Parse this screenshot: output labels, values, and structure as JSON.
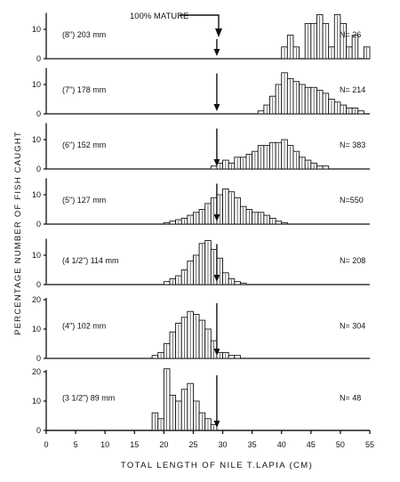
{
  "chart_data": {
    "type": "bar",
    "ylabel": "PERCENTAGE NUMBER OF FISH CAUGHT",
    "xlabel": "TOTAL LENGTH OF NILE T.LAPIA (CM)",
    "annotation": "100% MATURE",
    "mature_length": 29,
    "bin_width": 1,
    "xlim": [
      0,
      55
    ],
    "x_ticks": [
      "0",
      "5",
      "10",
      "15",
      "20",
      "25",
      "30",
      "35",
      "40",
      "45",
      "50",
      "55"
    ],
    "panels": [
      {
        "mesh_label": "(8\")  203 mm",
        "n_label": "N= 26",
        "ylim": [
          0,
          15
        ],
        "y_ticks": [
          "0",
          "10"
        ],
        "bin_starts": [
          40,
          41,
          42,
          43,
          44,
          45,
          46,
          47,
          48,
          49,
          50,
          51,
          52,
          53,
          54
        ],
        "values": [
          4,
          8,
          4,
          0,
          12,
          12,
          15,
          12,
          4,
          15,
          12,
          4,
          8,
          0,
          4
        ]
      },
      {
        "mesh_label": "(7\")  178 mm",
        "n_label": "N= 214",
        "ylim": [
          0,
          15
        ],
        "y_ticks": [
          "0",
          "10"
        ],
        "bin_starts": [
          36,
          37,
          38,
          39,
          40,
          41,
          42,
          43,
          44,
          45,
          46,
          47,
          48,
          49,
          50,
          51,
          52,
          53
        ],
        "values": [
          1,
          3,
          6,
          10,
          14,
          12,
          11,
          10,
          9,
          9,
          8,
          7,
          5,
          4,
          3,
          2,
          2,
          1
        ]
      },
      {
        "mesh_label": "(6\")  152 mm",
        "n_label": "N= 383",
        "ylim": [
          0,
          15
        ],
        "y_ticks": [
          "0",
          "10"
        ],
        "bin_starts": [
          28,
          29,
          30,
          31,
          32,
          33,
          34,
          35,
          36,
          37,
          38,
          39,
          40,
          41,
          42,
          43,
          44,
          45,
          46,
          47
        ],
        "values": [
          1,
          2,
          3,
          2,
          4,
          4,
          5,
          6,
          8,
          8,
          9,
          9,
          10,
          8,
          6,
          4,
          3,
          2,
          1,
          1
        ]
      },
      {
        "mesh_label": "(5\")  127 mm",
        "n_label": "N=550",
        "ylim": [
          0,
          15
        ],
        "y_ticks": [
          "0",
          "10"
        ],
        "bin_starts": [
          20,
          21,
          22,
          23,
          24,
          25,
          26,
          27,
          28,
          29,
          30,
          31,
          32,
          33,
          34,
          35,
          36,
          37,
          38,
          39,
          40
        ],
        "values": [
          0.5,
          1,
          1.5,
          2,
          3,
          4,
          5,
          7,
          9,
          10,
          12,
          11,
          9,
          6,
          5,
          4,
          4,
          3,
          2,
          1,
          0.5
        ]
      },
      {
        "mesh_label": "(4 1/2\")  114 mm",
        "n_label": "N= 208",
        "ylim": [
          0,
          15
        ],
        "y_ticks": [
          "0",
          "10"
        ],
        "bin_starts": [
          20,
          21,
          22,
          23,
          24,
          25,
          26,
          27,
          28,
          29,
          30,
          31,
          32,
          33
        ],
        "values": [
          1,
          2,
          3,
          5,
          8,
          10,
          14,
          15,
          12,
          9,
          4,
          2,
          1,
          0.5
        ]
      },
      {
        "mesh_label": "(4\")  102 mm",
        "n_label": "N= 304",
        "ylim": [
          0,
          20
        ],
        "y_ticks": [
          "0",
          "10",
          "20"
        ],
        "bin_starts": [
          18,
          19,
          20,
          21,
          22,
          23,
          24,
          25,
          26,
          27,
          28,
          29,
          30,
          31,
          32
        ],
        "values": [
          1,
          2,
          5,
          9,
          12,
          14,
          16,
          15,
          13,
          10,
          6,
          2,
          2,
          1,
          1
        ]
      },
      {
        "mesh_label": "(3 1/2\")  89 mm",
        "n_label": "N= 48",
        "ylim": [
          0,
          20
        ],
        "y_ticks": [
          "0",
          "10",
          "20"
        ],
        "bin_starts": [
          18,
          19,
          20,
          21,
          22,
          23,
          24,
          25,
          26,
          27,
          28
        ],
        "values": [
          6,
          4,
          21,
          12,
          10,
          14,
          16,
          10,
          6,
          4,
          2
        ]
      }
    ]
  }
}
